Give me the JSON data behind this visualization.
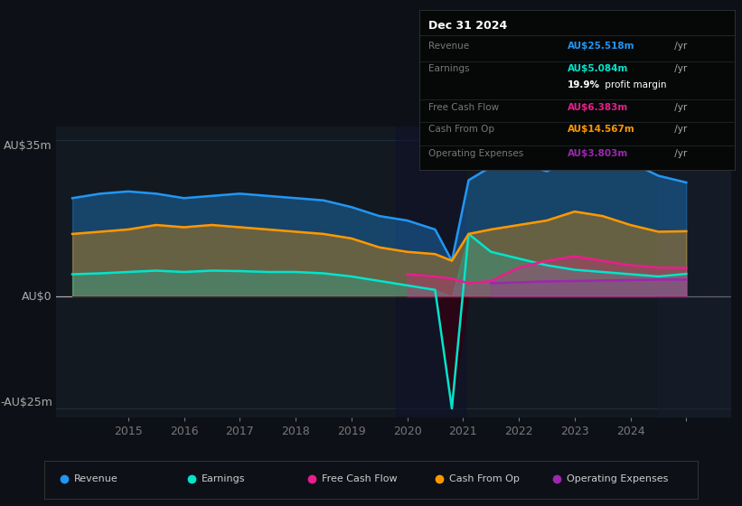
{
  "bg_color": "#0d1117",
  "plot_bg_color": "#131920",
  "grid_color": "#1e2d3d",
  "years": [
    2013.5,
    2014,
    2014.5,
    2015,
    2015.5,
    2016,
    2016.5,
    2017,
    2017.5,
    2018,
    2018.5,
    2019,
    2019.5,
    2020,
    2020.3,
    2020.6,
    2021,
    2021.5,
    2022,
    2022.5,
    2023,
    2023.5,
    2024,
    2024.5
  ],
  "revenue": [
    22,
    23,
    23.5,
    23,
    22,
    22.5,
    23,
    22.5,
    22,
    21.5,
    20,
    18,
    17,
    15,
    8,
    26,
    29,
    30,
    28,
    31,
    33,
    30,
    27,
    25.5
  ],
  "earnings": [
    5,
    5.2,
    5.5,
    5.8,
    5.5,
    5.8,
    5.7,
    5.5,
    5.5,
    5.2,
    4.5,
    3.5,
    2.5,
    1.5,
    -25,
    14,
    10,
    8.5,
    7,
    6,
    5.5,
    5,
    4.5,
    5.08
  ],
  "free_cash": [
    null,
    null,
    null,
    null,
    null,
    null,
    null,
    null,
    null,
    null,
    null,
    null,
    5,
    4.5,
    4,
    3,
    3.5,
    6.5,
    8,
    9,
    8,
    7,
    6.5,
    6.4
  ],
  "cash_from_op": [
    14,
    14.5,
    15,
    16,
    15.5,
    16,
    15.5,
    15,
    14.5,
    14,
    13,
    11,
    10,
    9.5,
    8,
    14,
    15,
    16,
    17,
    19,
    18,
    16,
    14.5,
    14.6
  ],
  "op_expenses": [
    null,
    null,
    null,
    null,
    null,
    null,
    null,
    null,
    null,
    null,
    null,
    null,
    null,
    null,
    null,
    null,
    3,
    3.2,
    3.4,
    3.5,
    3.6,
    3.7,
    3.8,
    3.8
  ],
  "revenue_color": "#2196f3",
  "earnings_color": "#00e5cc",
  "free_cash_color": "#e91e8c",
  "cash_from_op_color": "#ff9800",
  "op_expenses_color": "#9c27b0",
  "ylim": [
    -27,
    38
  ],
  "xlim": [
    2013.2,
    2025.3
  ],
  "ylabel_top": "AU$35m",
  "ylabel_zero": "AU$0",
  "ylabel_bottom": "-AU$25m",
  "info_box": {
    "title": "Dec 31 2024",
    "rows": [
      {
        "label": "Revenue",
        "value": "AU$25.518m",
        "suffix": " /yr",
        "color": "#2196f3",
        "type": "value"
      },
      {
        "label": "Earnings",
        "value": "AU$5.084m",
        "suffix": " /yr",
        "color": "#00e5cc",
        "type": "value"
      },
      {
        "label": "",
        "value": "19.9%",
        "suffix": " profit margin",
        "color": "#ffffff",
        "type": "margin"
      },
      {
        "label": "Free Cash Flow",
        "value": "AU$6.383m",
        "suffix": " /yr",
        "color": "#e91e8c",
        "type": "value"
      },
      {
        "label": "Cash From Op",
        "value": "AU$14.567m",
        "suffix": " /yr",
        "color": "#ff9800",
        "type": "value"
      },
      {
        "label": "Operating Expenses",
        "value": "AU$3.803m",
        "suffix": " /yr",
        "color": "#9c27b0",
        "type": "value"
      }
    ]
  },
  "legend": [
    {
      "label": "Revenue",
      "color": "#2196f3"
    },
    {
      "label": "Earnings",
      "color": "#00e5cc"
    },
    {
      "label": "Free Cash Flow",
      "color": "#e91e8c"
    },
    {
      "label": "Cash From Op",
      "color": "#ff9800"
    },
    {
      "label": "Operating Expenses",
      "color": "#9c27b0"
    }
  ],
  "xticks": [
    2014.5,
    2015.5,
    2016.5,
    2017.5,
    2018.5,
    2019.5,
    2020.5,
    2021.5,
    2022.5,
    2023.5,
    2024.5
  ],
  "xtick_labels": [
    "2015",
    "2016",
    "2017",
    "2018",
    "2019",
    "2020",
    "2021",
    "2022",
    "2023",
    "2024",
    ""
  ]
}
